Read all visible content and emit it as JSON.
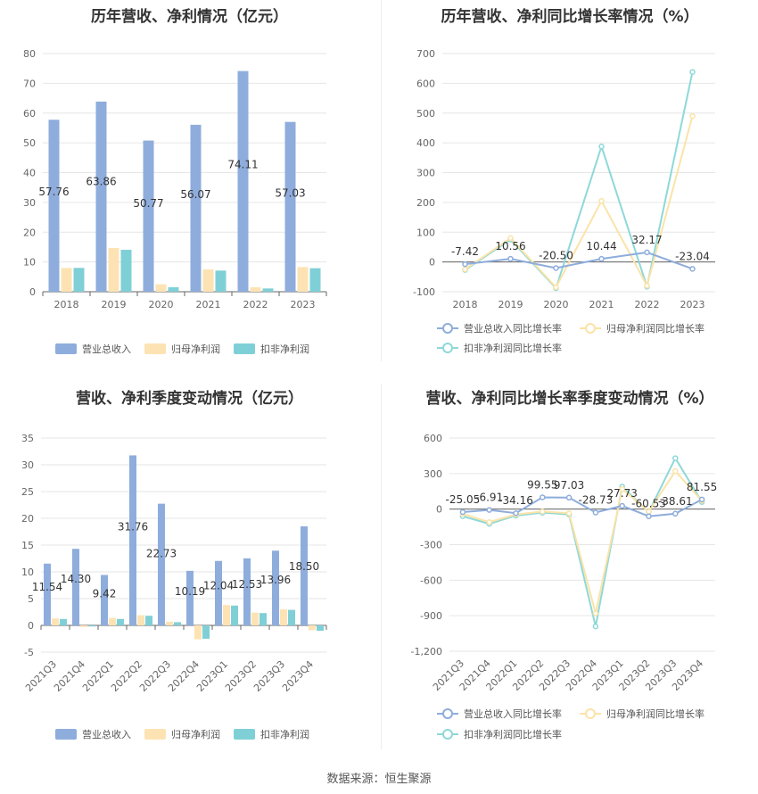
{
  "colors": {
    "revenue": "#8eaddc",
    "net_profit": "#fde3b4",
    "deducted_profit": "#7fd0d6",
    "revenue_line": "#8eaddc",
    "net_profit_line": "#fbe3a8",
    "deducted_profit_line": "#8fd8d8",
    "grid": "#e6e6e6",
    "axis": "#666666"
  },
  "source": "数据来源：恒生聚源",
  "legend": {
    "revenue": "营业总收入",
    "net_profit": "归母净利润",
    "deducted_profit": "扣非净利润",
    "revenue_growth": "营业总收入同比增长率",
    "net_profit_growth": "归母净利润同比增长率",
    "deducted_profit_growth": "扣非净利润同比增长率"
  },
  "chart_data": [
    {
      "id": "annual_bars",
      "type": "bar",
      "title": "历年营收、净利情况（亿元）",
      "categories": [
        "2018",
        "2019",
        "2020",
        "2021",
        "2022",
        "2023"
      ],
      "ylim": [
        0,
        80
      ],
      "yticks": [
        0,
        10,
        20,
        30,
        40,
        50,
        60,
        70,
        80
      ],
      "ytick_labels": [
        "0",
        "10",
        "20",
        "30",
        "40",
        "50",
        "60",
        "70",
        "80"
      ],
      "series": [
        {
          "name": "营业总收入",
          "values": [
            57.76,
            63.86,
            50.77,
            56.07,
            74.11,
            57.03
          ],
          "labels": [
            "57.76",
            "63.86",
            "50.77",
            "56.07",
            "74.11",
            "57.03"
          ]
        },
        {
          "name": "归母净利润",
          "values": [
            8.0,
            14.7,
            2.5,
            7.5,
            1.5,
            8.3
          ]
        },
        {
          "name": "扣非净利润",
          "values": [
            8.0,
            14.1,
            1.5,
            7.1,
            1.1,
            7.9
          ]
        }
      ],
      "grid": true,
      "legend": "bottom"
    },
    {
      "id": "annual_growth",
      "type": "line",
      "title": "历年营收、净利同比增长率情况（%）",
      "categories": [
        "2018",
        "2019",
        "2020",
        "2021",
        "2022",
        "2023"
      ],
      "ylim": [
        -100,
        700
      ],
      "yticks": [
        -100,
        0,
        100,
        200,
        300,
        400,
        500,
        600,
        700
      ],
      "ytick_labels": [
        "-100",
        "0",
        "100",
        "200",
        "300",
        "400",
        "500",
        "600",
        "700"
      ],
      "series": [
        {
          "name": "营业总收入同比增长率",
          "values": [
            -7.42,
            10.56,
            -20.5,
            10.44,
            32.17,
            -23.04
          ],
          "labels": [
            "-7.42",
            "10.56",
            "-20.50",
            "10.44",
            "32.17",
            "-23.04"
          ]
        },
        {
          "name": "归母净利润同比增长率",
          "values": [
            -25,
            80,
            -85,
            205,
            -80,
            490
          ]
        },
        {
          "name": "扣非净利润同比增长率",
          "values": [
            -27,
            75,
            -88,
            388,
            -83,
            638
          ]
        }
      ],
      "grid": true,
      "legend": "bottom"
    },
    {
      "id": "quarterly_bars",
      "type": "bar",
      "title": "营收、净利季度变动情况（亿元）",
      "categories": [
        "2021Q3",
        "2021Q4",
        "2022Q1",
        "2022Q2",
        "2022Q3",
        "2022Q4",
        "2023Q1",
        "2023Q2",
        "2023Q3",
        "2023Q4"
      ],
      "ylim": [
        -5,
        35
      ],
      "yticks": [
        -5,
        0,
        5,
        10,
        15,
        20,
        25,
        30,
        35
      ],
      "ytick_labels": [
        "-5",
        "0",
        "5",
        "10",
        "15",
        "20",
        "25",
        "30",
        "35"
      ],
      "series": [
        {
          "name": "营业总收入",
          "values": [
            11.54,
            14.3,
            9.42,
            31.76,
            22.73,
            10.19,
            12.04,
            12.53,
            13.96,
            18.5
          ],
          "labels": [
            "11.54",
            "14.30",
            "9.42",
            "31.76",
            "22.73",
            "10.19",
            "12.04",
            "12.53",
            "13.96",
            "18.50"
          ]
        },
        {
          "name": "归母净利润",
          "values": [
            1.3,
            -0.3,
            1.4,
            1.9,
            0.7,
            -2.6,
            3.8,
            2.4,
            3.0,
            -0.9
          ]
        },
        {
          "name": "扣非净利润",
          "values": [
            1.2,
            -0.2,
            1.2,
            1.8,
            0.6,
            -2.5,
            3.7,
            2.3,
            2.9,
            -1.0
          ]
        }
      ],
      "grid": true,
      "legend": "bottom"
    },
    {
      "id": "quarterly_growth",
      "type": "line",
      "title": "营收、净利同比增长率季度变动情况（%）",
      "categories": [
        "2021Q3",
        "2021Q4",
        "2022Q1",
        "2022Q2",
        "2022Q3",
        "2022Q4",
        "2023Q1",
        "2023Q2",
        "2023Q3",
        "2023Q4"
      ],
      "ylim": [
        -1200,
        600
      ],
      "yticks": [
        -1200,
        -900,
        -600,
        -300,
        0,
        300,
        600
      ],
      "ytick_labels": [
        "-1,200",
        "-900",
        "-600",
        "-300",
        "0",
        "300",
        "600"
      ],
      "series": [
        {
          "name": "营业总收入同比增长率",
          "values": [
            -25.05,
            -6.91,
            -34.16,
            99.55,
            97.03,
            -28.73,
            27.73,
            -60.53,
            -38.61,
            81.55
          ],
          "labels": [
            "-25.05",
            "-6.91",
            "-34.16",
            "99.55",
            "97.03",
            "-28.73",
            "27.73",
            "-60.53",
            "-38.61",
            "81.55"
          ]
        },
        {
          "name": "归母净利润同比增长率",
          "values": [
            -40,
            -110,
            -45,
            -20,
            -35,
            -880,
            170,
            -20,
            320,
            70
          ]
        },
        {
          "name": "扣非净利润同比增长率",
          "values": [
            -60,
            -125,
            -55,
            -30,
            -45,
            -990,
            190,
            -25,
            430,
            60
          ]
        }
      ],
      "grid": true,
      "legend": "bottom"
    }
  ]
}
